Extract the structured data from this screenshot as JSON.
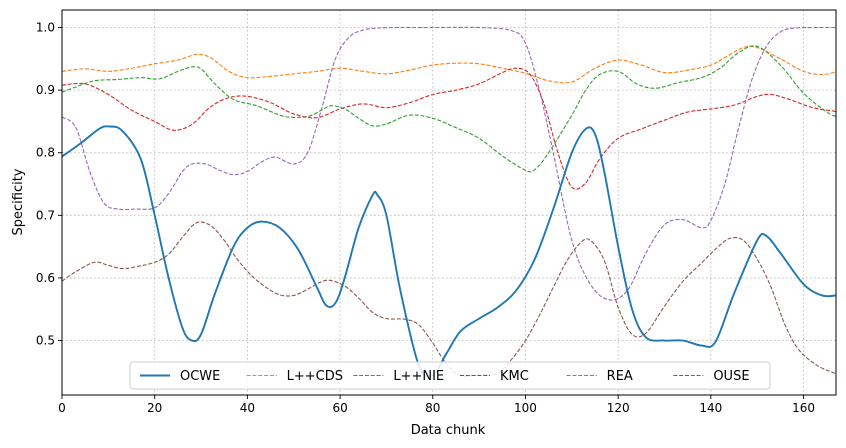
{
  "chart_data": {
    "type": "line",
    "xlabel": "Data chunk",
    "ylabel": "Specificity",
    "xlim": [
      0,
      167
    ],
    "ylim": [
      0.413,
      1.028
    ],
    "xticks": [
      0,
      20,
      40,
      60,
      80,
      100,
      120,
      140,
      160
    ],
    "yticks": [
      0.5,
      0.6,
      0.7,
      0.8,
      0.9,
      1.0
    ],
    "ytick_labels": [
      "0.5",
      "0.6",
      "0.7",
      "0.8",
      "0.9",
      "1.0"
    ],
    "grid": true,
    "legend": "lower-center",
    "series": [
      {
        "name": "OCWE",
        "color": "#1f77b4",
        "style": "solid",
        "x": [
          0,
          4,
          8,
          10,
          13,
          17,
          20,
          23,
          26,
          28,
          30,
          33,
          37,
          40,
          43,
          47,
          51,
          55,
          57,
          59,
          61,
          64,
          67,
          68,
          70,
          73,
          77,
          80,
          83,
          86,
          90,
          94,
          98,
          102,
          106,
          110,
          113,
          115,
          117,
          120,
          123,
          126,
          130,
          134,
          138,
          141,
          145,
          150,
          152,
          155,
          160,
          164,
          167
        ],
        "y": [
          0.794,
          0.815,
          0.838,
          0.842,
          0.835,
          0.79,
          0.7,
          0.6,
          0.52,
          0.5,
          0.51,
          0.575,
          0.65,
          0.68,
          0.69,
          0.68,
          0.645,
          0.585,
          0.556,
          0.56,
          0.6,
          0.68,
          0.732,
          0.733,
          0.7,
          0.58,
          0.46,
          0.445,
          0.48,
          0.515,
          0.535,
          0.553,
          0.58,
          0.63,
          0.71,
          0.8,
          0.838,
          0.83,
          0.77,
          0.65,
          0.55,
          0.505,
          0.5,
          0.5,
          0.492,
          0.498,
          0.575,
          0.66,
          0.667,
          0.64,
          0.59,
          0.572,
          0.572
        ]
      },
      {
        "name": "L++CDS",
        "color": "#ff7f0e",
        "style": "dashed",
        "x": [
          0,
          5,
          10,
          15,
          20,
          25,
          29,
          32,
          36,
          40,
          45,
          50,
          55,
          60,
          65,
          70,
          75,
          80,
          85,
          90,
          95,
          100,
          105,
          110,
          115,
          120,
          125,
          130,
          135,
          140,
          143,
          147,
          150,
          155,
          160,
          164,
          167
        ],
        "y": [
          0.93,
          0.934,
          0.93,
          0.935,
          0.942,
          0.948,
          0.957,
          0.952,
          0.93,
          0.92,
          0.922,
          0.926,
          0.93,
          0.935,
          0.93,
          0.926,
          0.932,
          0.94,
          0.943,
          0.942,
          0.935,
          0.927,
          0.915,
          0.913,
          0.935,
          0.948,
          0.94,
          0.928,
          0.932,
          0.94,
          0.952,
          0.968,
          0.968,
          0.95,
          0.93,
          0.925,
          0.929
        ]
      },
      {
        "name": "L++NIE",
        "color": "#2ca02c",
        "style": "dashed",
        "x": [
          0,
          3,
          7,
          12,
          17,
          21,
          25,
          28,
          30,
          33,
          37,
          42,
          48,
          53,
          56,
          58,
          61,
          64,
          67,
          70,
          75,
          80,
          85,
          90,
          95,
          100,
          102,
          105,
          110,
          113,
          116,
          120,
          124,
          128,
          133,
          138,
          142,
          146,
          150,
          155,
          160,
          165,
          167
        ],
        "y": [
          0.897,
          0.905,
          0.915,
          0.917,
          0.92,
          0.918,
          0.93,
          0.937,
          0.934,
          0.91,
          0.885,
          0.875,
          0.858,
          0.858,
          0.868,
          0.875,
          0.87,
          0.855,
          0.843,
          0.846,
          0.86,
          0.855,
          0.84,
          0.823,
          0.795,
          0.772,
          0.773,
          0.8,
          0.86,
          0.9,
          0.925,
          0.93,
          0.91,
          0.903,
          0.912,
          0.92,
          0.935,
          0.96,
          0.97,
          0.94,
          0.895,
          0.865,
          0.858
        ]
      },
      {
        "name": "KMC",
        "color": "#d62728",
        "style": "dashed",
        "x": [
          0,
          5,
          10,
          15,
          20,
          24,
          28,
          32,
          36,
          40,
          45,
          50,
          55,
          60,
          65,
          70,
          75,
          80,
          85,
          90,
          95,
          98,
          101,
          104,
          107,
          110,
          113,
          116,
          120,
          125,
          130,
          135,
          140,
          145,
          150,
          153,
          157,
          162,
          167
        ],
        "y": [
          0.908,
          0.91,
          0.893,
          0.868,
          0.85,
          0.836,
          0.845,
          0.873,
          0.888,
          0.89,
          0.88,
          0.862,
          0.856,
          0.87,
          0.878,
          0.872,
          0.88,
          0.893,
          0.9,
          0.91,
          0.928,
          0.935,
          0.925,
          0.878,
          0.8,
          0.745,
          0.752,
          0.79,
          0.823,
          0.838,
          0.852,
          0.865,
          0.87,
          0.876,
          0.89,
          0.893,
          0.885,
          0.872,
          0.866
        ]
      },
      {
        "name": "REA",
        "color": "#9467bd",
        "style": "dashed",
        "x": [
          0,
          3,
          6,
          9,
          12,
          16,
          20,
          23,
          26,
          28,
          31,
          34,
          37,
          40,
          43,
          46,
          50,
          53,
          56,
          59,
          62,
          65,
          68,
          72,
          80,
          90,
          97,
          100,
          103,
          106,
          110,
          114,
          118,
          122,
          126,
          130,
          134,
          138,
          140,
          143,
          146,
          149,
          152,
          155,
          158,
          163,
          167
        ],
        "y": [
          0.857,
          0.84,
          0.77,
          0.72,
          0.71,
          0.71,
          0.712,
          0.735,
          0.77,
          0.782,
          0.782,
          0.772,
          0.765,
          0.77,
          0.785,
          0.793,
          0.782,
          0.8,
          0.87,
          0.95,
          0.985,
          0.996,
          0.999,
          1.0,
          1.0,
          1.0,
          0.995,
          0.975,
          0.9,
          0.8,
          0.66,
          0.59,
          0.565,
          0.58,
          0.64,
          0.685,
          0.693,
          0.68,
          0.692,
          0.75,
          0.84,
          0.92,
          0.97,
          0.993,
          0.999,
          1.0,
          1.0
        ]
      },
      {
        "name": "OUSE",
        "color": "#8c564b",
        "style": "dashed",
        "x": [
          0,
          3,
          7,
          10,
          13,
          16,
          20,
          23,
          26,
          29,
          32,
          35,
          38,
          41,
          44,
          47,
          50,
          53,
          56,
          58,
          61,
          64,
          67,
          70,
          74,
          77,
          80,
          83,
          86,
          90,
          94,
          97,
          100,
          103,
          106,
          109,
          112,
          114,
          117,
          120,
          123,
          126,
          130,
          134,
          138,
          141,
          144,
          147,
          150,
          153,
          156,
          159,
          163,
          167
        ],
        "y": [
          0.595,
          0.61,
          0.625,
          0.62,
          0.615,
          0.618,
          0.625,
          0.638,
          0.665,
          0.688,
          0.684,
          0.66,
          0.628,
          0.603,
          0.585,
          0.573,
          0.572,
          0.582,
          0.594,
          0.596,
          0.587,
          0.568,
          0.545,
          0.535,
          0.534,
          0.525,
          0.496,
          0.462,
          0.444,
          0.445,
          0.448,
          0.47,
          0.5,
          0.54,
          0.585,
          0.628,
          0.657,
          0.66,
          0.628,
          0.553,
          0.51,
          0.512,
          0.555,
          0.595,
          0.624,
          0.646,
          0.663,
          0.66,
          0.63,
          0.585,
          0.525,
          0.485,
          0.46,
          0.447
        ]
      }
    ]
  }
}
